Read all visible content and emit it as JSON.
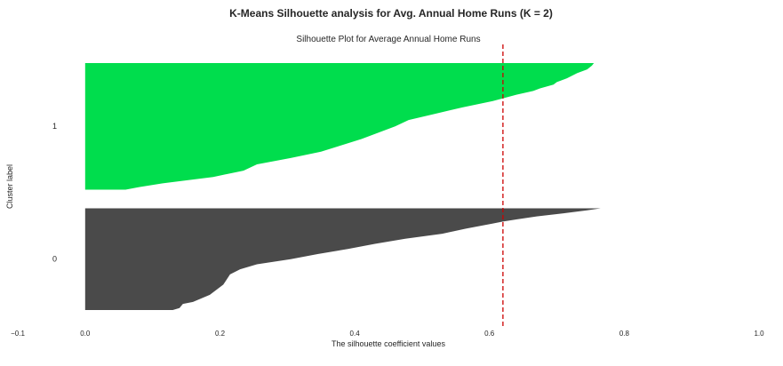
{
  "chart_data": {
    "type": "area",
    "suptitle": "K-Means Silhouette analysis for Avg. Annual Home Runs (K = 2)",
    "title": "Silhouette Plot for Average Annual Home Runs",
    "xlabel": "The silhouette coefficient values",
    "ylabel": "Cluster label",
    "xlim": [
      -0.1,
      1.0
    ],
    "xticks": [
      -0.1,
      0.0,
      0.2,
      0.4,
      0.6,
      0.8,
      1.0
    ],
    "xtick_labels": [
      "−0.1",
      "0.0",
      "0.2",
      "0.4",
      "0.6",
      "0.8",
      "1.0"
    ],
    "grid": false,
    "average_silhouette_score": 0.62,
    "average_line_color": "#cc0000",
    "clusters": [
      {
        "label": "0",
        "color": "#4a4a4a",
        "n_samples": 115,
        "profile": [
          [
            0.0,
            0.13
          ],
          [
            0.02,
            0.14
          ],
          [
            0.06,
            0.145
          ],
          [
            0.08,
            0.16
          ],
          [
            0.15,
            0.185
          ],
          [
            0.25,
            0.205
          ],
          [
            0.35,
            0.215
          ],
          [
            0.4,
            0.23
          ],
          [
            0.45,
            0.255
          ],
          [
            0.5,
            0.305
          ],
          [
            0.55,
            0.345
          ],
          [
            0.6,
            0.39
          ],
          [
            0.65,
            0.43
          ],
          [
            0.7,
            0.475
          ],
          [
            0.75,
            0.53
          ],
          [
            0.8,
            0.565
          ],
          [
            0.85,
            0.605
          ],
          [
            0.87,
            0.62
          ],
          [
            0.89,
            0.64
          ],
          [
            0.92,
            0.67
          ],
          [
            0.95,
            0.71
          ],
          [
            0.98,
            0.745
          ],
          [
            1.0,
            0.765
          ]
        ]
      },
      {
        "label": "1",
        "color": "#00dd4d",
        "n_samples": 143,
        "profile": [
          [
            0.0,
            0.06
          ],
          [
            0.02,
            0.08
          ],
          [
            0.05,
            0.115
          ],
          [
            0.1,
            0.19
          ],
          [
            0.15,
            0.235
          ],
          [
            0.2,
            0.255
          ],
          [
            0.25,
            0.305
          ],
          [
            0.3,
            0.35
          ],
          [
            0.35,
            0.38
          ],
          [
            0.4,
            0.41
          ],
          [
            0.45,
            0.435
          ],
          [
            0.5,
            0.46
          ],
          [
            0.55,
            0.48
          ],
          [
            0.6,
            0.52
          ],
          [
            0.65,
            0.56
          ],
          [
            0.7,
            0.605
          ],
          [
            0.75,
            0.64
          ],
          [
            0.78,
            0.665
          ],
          [
            0.8,
            0.675
          ],
          [
            0.83,
            0.695
          ],
          [
            0.85,
            0.7
          ],
          [
            0.88,
            0.715
          ],
          [
            0.92,
            0.73
          ],
          [
            0.95,
            0.745
          ],
          [
            0.98,
            0.752
          ],
          [
            1.0,
            0.755
          ]
        ]
      }
    ]
  }
}
